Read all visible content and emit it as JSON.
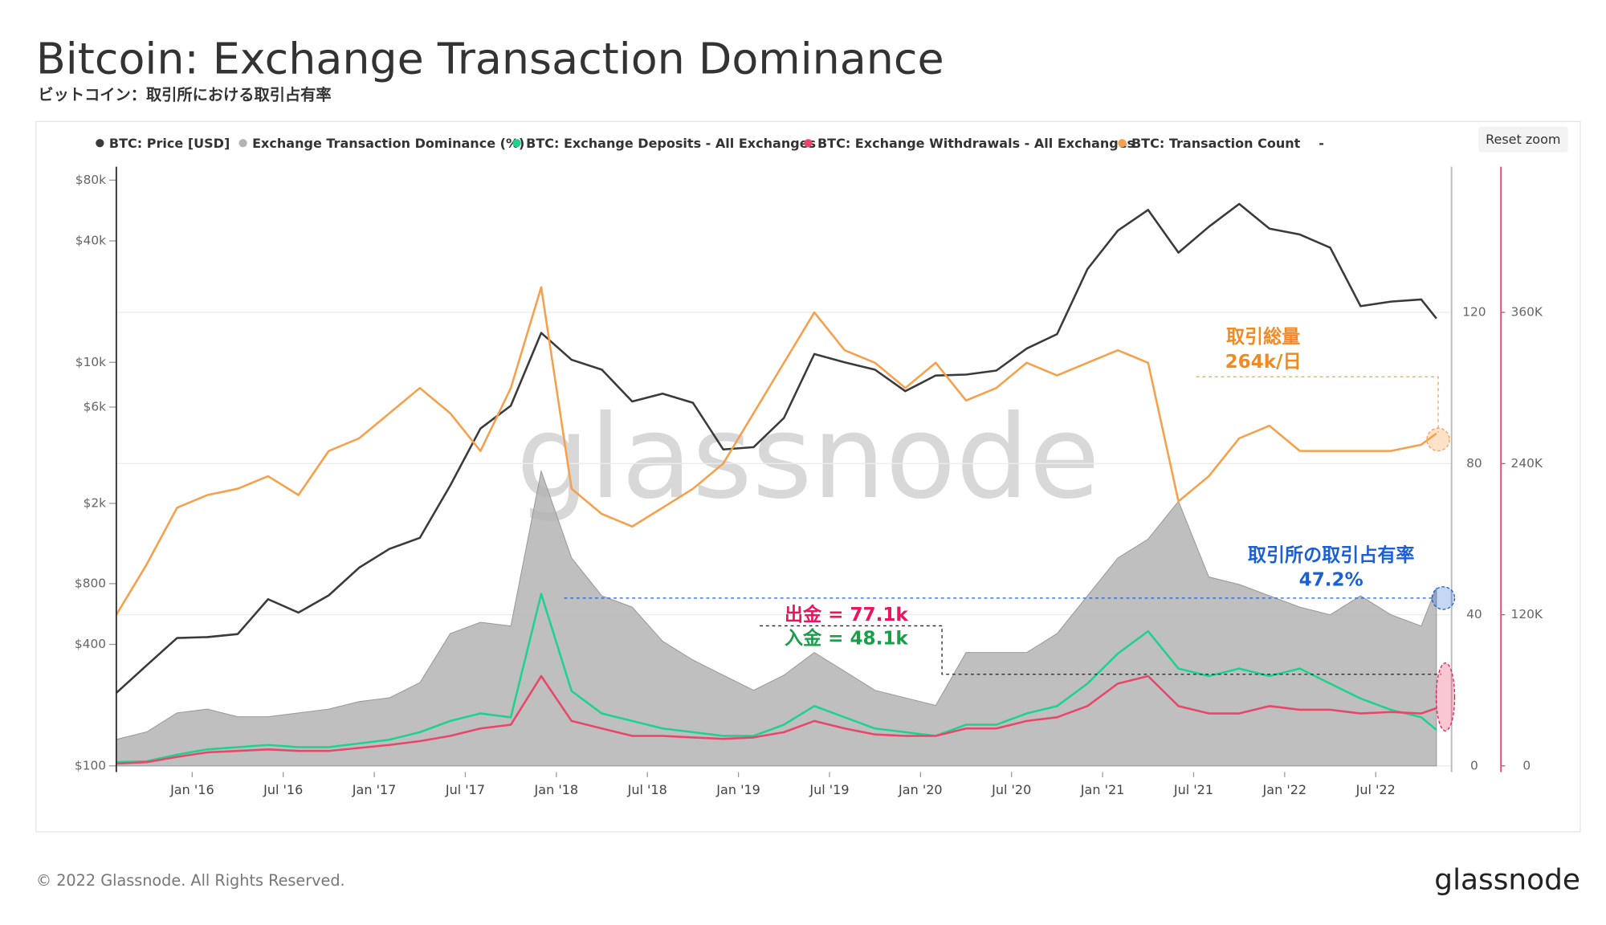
{
  "chart_data": {
    "type": "multi-axis-line",
    "title": "Bitcoin: Exchange Transaction Dominance",
    "subtitle": "ビットコイン：取引所における取引占有率",
    "reset_zoom": "Reset zoom",
    "watermark": "glassnode",
    "footer": "© 2022 Glassnode. All Rights Reserved.",
    "brand": "glassnode",
    "legend_extra": "-",
    "annotations": [
      "取引総量",
      "264k/日",
      "取引所の取引占有率",
      "47.2%",
      "出金 = 77.1k",
      "入金 = 48.1k"
    ],
    "x": [
      "2015-08",
      "2015-10",
      "2015-12",
      "2016-02",
      "2016-04",
      "2016-06",
      "2016-08",
      "2016-10",
      "2016-12",
      "2017-02",
      "2017-04",
      "2017-06",
      "2017-08",
      "2017-10",
      "2017-12",
      "2018-02",
      "2018-04",
      "2018-06",
      "2018-08",
      "2018-10",
      "2018-12",
      "2019-02",
      "2019-04",
      "2019-06",
      "2019-08",
      "2019-10",
      "2019-12",
      "2020-02",
      "2020-04",
      "2020-06",
      "2020-08",
      "2020-10",
      "2020-12",
      "2021-02",
      "2021-04",
      "2021-06",
      "2021-08",
      "2021-10",
      "2021-12",
      "2022-02",
      "2022-04",
      "2022-06",
      "2022-08",
      "2022-10",
      "2022-11"
    ],
    "xlim": [
      "2015-08",
      "2022-12"
    ],
    "xticks": [
      {
        "value": "2016-01",
        "label": "Jan '16"
      },
      {
        "value": "2016-07",
        "label": "Jul '16"
      },
      {
        "value": "2017-01",
        "label": "Jan '17"
      },
      {
        "value": "2017-07",
        "label": "Jul '17"
      },
      {
        "value": "2018-01",
        "label": "Jan '18"
      },
      {
        "value": "2018-07",
        "label": "Jul '18"
      },
      {
        "value": "2019-01",
        "label": "Jan '19"
      },
      {
        "value": "2019-07",
        "label": "Jul '19"
      },
      {
        "value": "2020-01",
        "label": "Jan '20"
      },
      {
        "value": "2020-07",
        "label": "Jul '20"
      },
      {
        "value": "2021-01",
        "label": "Jan '21"
      },
      {
        "value": "2021-07",
        "label": "Jul '21"
      },
      {
        "value": "2022-01",
        "label": "Jan '22"
      },
      {
        "value": "2022-07",
        "label": "Jul '22"
      }
    ],
    "ylim": [
      100,
      80000
    ],
    "log_scale": true,
    "yticks": [
      {
        "value": 100,
        "label": "$100"
      },
      {
        "value": 400,
        "label": "$400"
      },
      {
        "value": 800,
        "label": "$800"
      },
      {
        "value": 2000,
        "label": "$2k"
      },
      {
        "value": 6000,
        "label": "$6k"
      },
      {
        "value": 10000,
        "label": "$10k"
      },
      {
        "value": 40000,
        "label": "$40k"
      },
      {
        "value": 80000,
        "label": "$80k"
      }
    ],
    "y2lim": [
      0,
      155
    ],
    "y2ticks": [
      0,
      40,
      80,
      120
    ],
    "y3lim": [
      0,
      465000
    ],
    "y3ticks": [
      0,
      {
        "value": 120000,
        "label": "120K"
      },
      {
        "value": 240000,
        "label": "240K"
      },
      {
        "value": 360000,
        "label": "360K"
      }
    ],
    "y4lim": [
      0,
      783000
    ],
    "grid": true,
    "series": [
      {
        "name": "BTC: Price [USD]",
        "color": "#3a3a3a",
        "axis": "y",
        "values": [
          230,
          315,
          430,
          435,
          450,
          670,
          575,
          700,
          960,
          1190,
          1350,
          2450,
          4700,
          6100,
          14000,
          10300,
          9200,
          6400,
          7000,
          6300,
          3700,
          3800,
          5300,
          11000,
          10000,
          9200,
          7200,
          8600,
          8700,
          9100,
          11700,
          13800,
          29000,
          45000,
          57000,
          35000,
          47000,
          61000,
          46000,
          43000,
          37000,
          19000,
          20000,
          20500,
          16500
        ]
      },
      {
        "name": "Exchange Transaction Dominance (%)",
        "color": "#b4b4b4",
        "axis": "y2",
        "fill": true,
        "values": [
          7,
          9,
          14,
          15,
          13,
          13,
          14,
          15,
          17,
          18,
          22,
          35,
          38,
          37,
          78,
          55,
          45,
          42,
          33,
          28,
          24,
          20,
          24,
          30,
          25,
          20,
          18,
          16,
          30,
          30,
          30,
          35,
          45,
          55,
          60,
          70,
          50,
          48,
          45,
          42,
          40,
          45,
          40,
          37,
          47.2
        ]
      },
      {
        "name": "BTC: Exchange Deposits - All Exchanges",
        "color": "#1fd18f",
        "axis": "y4",
        "values": [
          5000,
          6000,
          15000,
          22000,
          25000,
          28000,
          25000,
          25000,
          30000,
          35000,
          45000,
          60000,
          70000,
          65000,
          230000,
          100000,
          70000,
          60000,
          50000,
          45000,
          40000,
          40000,
          55000,
          80000,
          65000,
          50000,
          45000,
          40000,
          55000,
          55000,
          70000,
          80000,
          110000,
          150000,
          180000,
          130000,
          120000,
          130000,
          120000,
          130000,
          110000,
          90000,
          75000,
          65000,
          48100
        ]
      },
      {
        "name": "BTC: Exchange Withdrawals - All Exchanges",
        "color": "#e8476a",
        "axis": "y4",
        "values": [
          3000,
          5000,
          12000,
          18000,
          20000,
          22000,
          20000,
          20000,
          24000,
          28000,
          33000,
          40000,
          50000,
          55000,
          120000,
          60000,
          50000,
          40000,
          40000,
          38000,
          36000,
          38000,
          45000,
          60000,
          50000,
          42000,
          40000,
          40000,
          50000,
          50000,
          60000,
          65000,
          80000,
          110000,
          120000,
          80000,
          70000,
          70000,
          80000,
          75000,
          75000,
          70000,
          72000,
          70000,
          77100
        ]
      },
      {
        "name": "BTC: Transaction Count",
        "color": "#f7a04b",
        "axis": "y3",
        "values": [
          120000,
          160000,
          205000,
          215000,
          220000,
          230000,
          215000,
          250000,
          260000,
          280000,
          300000,
          280000,
          250000,
          300000,
          380000,
          220000,
          200000,
          190000,
          205000,
          220000,
          240000,
          280000,
          320000,
          360000,
          330000,
          320000,
          300000,
          320000,
          290000,
          300000,
          320000,
          310000,
          320000,
          330000,
          320000,
          210000,
          230000,
          260000,
          270000,
          250000,
          250000,
          250000,
          250000,
          255000,
          264000
        ]
      }
    ]
  }
}
